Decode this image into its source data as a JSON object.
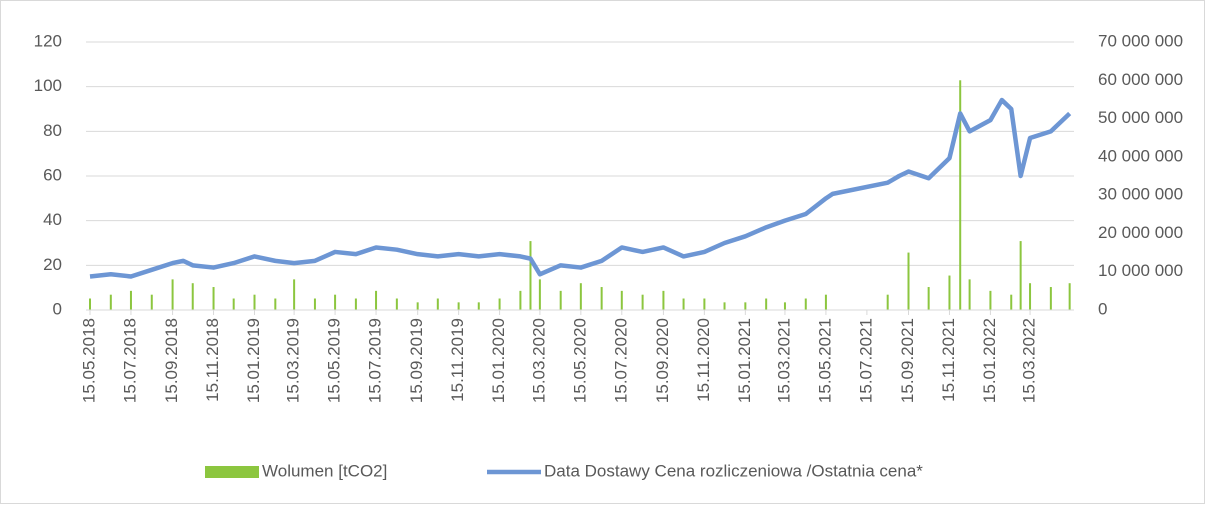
{
  "chart_data": {
    "type": "combo",
    "series": [
      {
        "name": "Wolumen [tCO2]",
        "type": "bar",
        "axis": "y2",
        "color": "#8cc63f",
        "x": [
          "15.05.2018",
          "15.06.2018",
          "15.07.2018",
          "15.08.2018",
          "15.09.2018",
          "15.10.2018",
          "15.11.2018",
          "15.12.2018",
          "15.01.2019",
          "15.02.2019",
          "15.03.2019",
          "15.04.2019",
          "15.05.2019",
          "15.06.2019",
          "15.07.2019",
          "15.08.2019",
          "15.09.2019",
          "15.10.2019",
          "15.11.2019",
          "15.12.2019",
          "15.01.2020",
          "15.02.2020",
          "01.03.2020",
          "15.03.2020",
          "15.04.2020",
          "15.05.2020",
          "15.06.2020",
          "15.07.2020",
          "15.08.2020",
          "15.09.2020",
          "15.10.2020",
          "15.11.2020",
          "15.12.2020",
          "15.01.2021",
          "15.02.2021",
          "15.03.2021",
          "15.04.2021",
          "15.05.2021",
          "15.08.2021",
          "15.09.2021",
          "15.10.2021",
          "15.11.2021",
          "01.12.2021",
          "15.12.2021",
          "15.01.2022",
          "15.02.2022",
          "01.03.2022",
          "15.03.2022",
          "15.04.2022",
          "13.05.2022"
        ],
        "values": [
          3000000,
          4000000,
          5000000,
          4000000,
          8000000,
          7000000,
          6000000,
          3000000,
          4000000,
          3000000,
          8000000,
          3000000,
          4000000,
          3000000,
          5000000,
          3000000,
          2000000,
          3000000,
          2000000,
          2000000,
          3000000,
          5000000,
          18000000,
          8000000,
          5000000,
          7000000,
          6000000,
          5000000,
          4000000,
          5000000,
          3000000,
          3000000,
          2000000,
          2000000,
          3000000,
          2000000,
          3000000,
          4000000,
          4000000,
          15000000,
          6000000,
          9000000,
          60000000,
          8000000,
          5000000,
          4000000,
          18000000,
          7000000,
          6000000,
          7000000
        ]
      },
      {
        "name": "Data Dostawy Cena rozliczeniowa /Ostatnia cena*",
        "type": "line",
        "axis": "y",
        "color": "#6d96d4",
        "x": [
          "15.05.2018",
          "15.06.2018",
          "15.07.2018",
          "15.08.2018",
          "15.09.2018",
          "01.10.2018",
          "15.10.2018",
          "15.11.2018",
          "15.12.2018",
          "15.01.2019",
          "15.02.2019",
          "15.03.2019",
          "15.04.2019",
          "15.05.2019",
          "15.06.2019",
          "15.07.2019",
          "15.08.2019",
          "15.09.2019",
          "15.10.2019",
          "15.11.2019",
          "15.12.2019",
          "15.01.2020",
          "15.02.2020",
          "01.03.2020",
          "15.03.2020",
          "15.04.2020",
          "15.05.2020",
          "15.06.2020",
          "15.07.2020",
          "15.08.2020",
          "15.09.2020",
          "15.10.2020",
          "15.11.2020",
          "15.12.2020",
          "15.01.2021",
          "15.02.2021",
          "15.03.2021",
          "15.04.2021",
          "15.05.2021",
          "25.05.2021",
          "15.08.2021",
          "01.09.2021",
          "15.09.2021",
          "15.10.2021",
          "15.11.2021",
          "01.12.2021",
          "15.12.2021",
          "15.01.2022",
          "01.02.2022",
          "15.02.2022",
          "01.03.2022",
          "15.03.2022",
          "15.04.2022",
          "13.05.2022"
        ],
        "values": [
          15,
          16,
          15,
          18,
          21,
          22,
          20,
          19,
          21,
          24,
          22,
          21,
          22,
          26,
          25,
          28,
          27,
          25,
          24,
          25,
          24,
          25,
          24,
          23,
          16,
          20,
          19,
          22,
          28,
          26,
          28,
          24,
          26,
          30,
          33,
          37,
          40,
          43,
          50,
          52,
          57,
          60,
          62,
          59,
          68,
          88,
          80,
          85,
          94,
          90,
          60,
          77,
          80,
          88
        ]
      }
    ],
    "xlim": [
      "15.05.2018",
      "15.05.2022"
    ],
    "xticks": [
      "15.05.2018",
      "15.07.2018",
      "15.09.2018",
      "15.11.2018",
      "15.01.2019",
      "15.03.2019",
      "15.05.2019",
      "15.07.2019",
      "15.09.2019",
      "15.11.2019",
      "15.01.2020",
      "15.03.2020",
      "15.05.2020",
      "15.07.2020",
      "15.09.2020",
      "15.11.2020",
      "15.01.2021",
      "15.03.2021",
      "15.05.2021",
      "15.07.2021",
      "15.09.2021",
      "15.11.2021",
      "15.01.2022",
      "15.03.2022"
    ],
    "ylim": [
      0,
      120
    ],
    "yticks": [
      0,
      20,
      40,
      60,
      80,
      100,
      120
    ],
    "y2lim": [
      0,
      70000000
    ],
    "y2ticks": [
      0,
      {
        "value": 10000000,
        "label": "10 000 000"
      },
      {
        "value": 20000000,
        "label": "20 000 000"
      },
      {
        "value": 30000000,
        "label": "30 000 000"
      },
      {
        "value": 40000000,
        "label": "40 000 000"
      },
      {
        "value": 50000000,
        "label": "50 000 000"
      },
      {
        "value": 60000000,
        "label": "60 000 000"
      },
      {
        "value": 70000000,
        "label": "70 000 000"
      }
    ],
    "grid": true,
    "legend": "bottom"
  }
}
